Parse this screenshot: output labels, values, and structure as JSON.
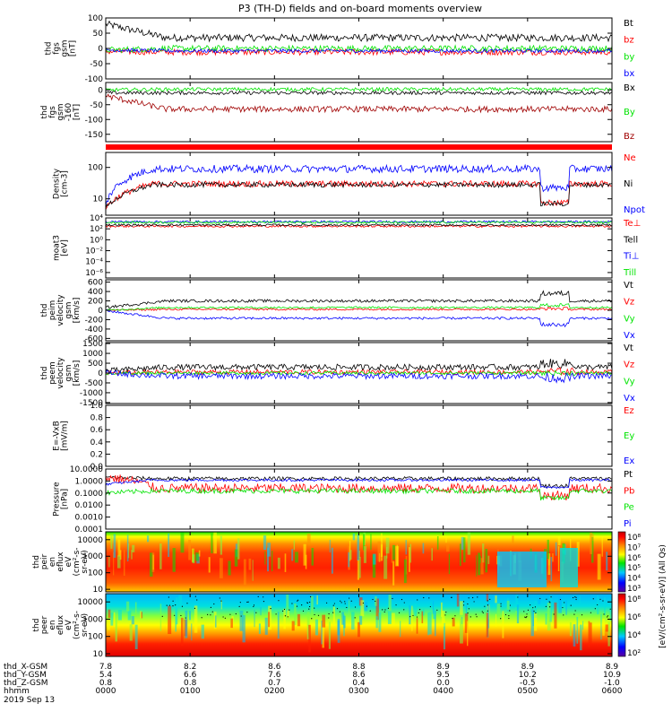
{
  "title": "P3 (TH-D) fields and on-board moments overview",
  "colors": {
    "black": "#000000",
    "red": "#ff0000",
    "green": "#00e400",
    "blue": "#0000ff",
    "darkred": "#a00000"
  },
  "chart_data": [
    {
      "type": "line",
      "panel": "fgs-gsm",
      "ylabel": [
        "thd",
        "fgs",
        "gsm",
        "[nT]"
      ],
      "ylim": [
        -100,
        100
      ],
      "yticks": [
        "100",
        "50",
        "0",
        "-50",
        "-100"
      ],
      "tickvals": [
        100,
        50,
        0,
        -50,
        -100
      ],
      "series": [
        {
          "name": "Bt",
          "color": "#000000",
          "base": 35,
          "noise": 12,
          "start": 80
        },
        {
          "name": "bz",
          "color": "#ff0000",
          "base": -12,
          "noise": 10,
          "start": -10
        },
        {
          "name": "by",
          "color": "#00e400",
          "base": 0,
          "noise": 10,
          "start": -5
        },
        {
          "name": "bx",
          "color": "#0000ff",
          "base": -8,
          "noise": 6,
          "start": -5
        }
      ]
    },
    {
      "type": "line",
      "panel": "fgs-gsm-160",
      "ylabel": [
        "thd",
        "fgs",
        "gsm",
        "-160",
        "[nT]"
      ],
      "ylim": [
        -175,
        25
      ],
      "yticks": [
        "0",
        "-50",
        "-100",
        "-150"
      ],
      "tickvals": [
        0,
        -50,
        -100,
        -150
      ],
      "series": [
        {
          "name": "Bx",
          "color": "#000000",
          "base": -10,
          "noise": 6,
          "start": -10
        },
        {
          "name": "By",
          "color": "#00e400",
          "base": 2,
          "noise": 6,
          "start": 0
        },
        {
          "name": "Bz",
          "color": "#a00000",
          "base": -65,
          "noise": 10,
          "start": -20
        }
      ]
    },
    {
      "type": "line",
      "panel": "density",
      "scale": "log",
      "ylabel": [
        "Density",
        "[cm-3]"
      ],
      "ylim": [
        3,
        300
      ],
      "yticks": [
        "100",
        "10"
      ],
      "tickvals": [
        100,
        10
      ],
      "series": [
        {
          "name": "Ne",
          "color": "#ff0000",
          "base": 30,
          "noise": 0.1,
          "start": 5
        },
        {
          "name": "Ni",
          "color": "#000000",
          "base": 28,
          "noise": 0.08,
          "start": 5
        },
        {
          "name": "Npot",
          "color": "#0000ff",
          "base": 90,
          "noise": 0.12,
          "start": 6
        }
      ]
    },
    {
      "type": "line",
      "panel": "temperature",
      "scale": "log",
      "ylabel": [
        "moat3",
        "[eV]"
      ],
      "ylim": [
        1e-07,
        10000
      ],
      "yticks": [
        "10⁴",
        "10²",
        "10⁰",
        "10⁻²",
        "10⁻⁴",
        "10⁻⁶"
      ],
      "tickvals": [
        10000,
        100,
        1,
        0.01,
        0.0001,
        1e-06
      ],
      "series": [
        {
          "name": "Te⊥",
          "color": "#ff0000",
          "base": 300,
          "noise": 0.2,
          "start": 300
        },
        {
          "name": "Tell",
          "color": "#000000",
          "base": 500,
          "noise": 0.2,
          "start": 500
        },
        {
          "name": "Ti⊥",
          "color": "#0000ff",
          "base": 2000,
          "noise": 0.2,
          "start": 2000
        },
        {
          "name": "Till",
          "color": "#00e400",
          "base": 1500,
          "noise": 0.2,
          "start": 1500
        }
      ]
    },
    {
      "type": "line",
      "panel": "peim-velocity",
      "ylabel": [
        "thd",
        "peim",
        "velocity",
        "gsm",
        "[km/s]"
      ],
      "ylim": [
        -650,
        650
      ],
      "yticks": [
        "600",
        "400",
        "200",
        "0",
        "-200",
        "-400",
        "-600"
      ],
      "tickvals": [
        600,
        400,
        200,
        0,
        -200,
        -400,
        -600
      ],
      "series": [
        {
          "name": "Vt",
          "color": "#000000",
          "base": 200,
          "noise": 30,
          "start": 60
        },
        {
          "name": "Vz",
          "color": "#ff0000",
          "base": 20,
          "noise": 20,
          "start": 0
        },
        {
          "name": "Vy",
          "color": "#00e400",
          "base": 60,
          "noise": 20,
          "start": 0
        },
        {
          "name": "Vx",
          "color": "#0000ff",
          "base": -170,
          "noise": 25,
          "start": -10
        }
      ]
    },
    {
      "type": "line",
      "panel": "peem-velocity",
      "ylabel": [
        "thd",
        "peem",
        "velocity",
        "gsm",
        "[km/s]"
      ],
      "ylim": [
        -1550,
        1550
      ],
      "yticks": [
        "1500",
        "1000",
        "500",
        "0",
        "-500",
        "-1000",
        "-1500"
      ],
      "tickvals": [
        1500,
        1000,
        500,
        0,
        -500,
        -1000,
        -1500
      ],
      "series": [
        {
          "name": "Vt",
          "color": "#000000",
          "base": 300,
          "noise": 150,
          "start": 100
        },
        {
          "name": "Vz",
          "color": "#ff0000",
          "base": 50,
          "noise": 120,
          "start": 0
        },
        {
          "name": "Vy",
          "color": "#00e400",
          "base": 0,
          "noise": 80,
          "start": 0
        },
        {
          "name": "Vx",
          "color": "#0000ff",
          "base": -150,
          "noise": 150,
          "start": 0
        }
      ]
    },
    {
      "type": "line",
      "panel": "efield",
      "ylabel": [
        "E=-VxB",
        "[mV/m]"
      ],
      "ylim": [
        0,
        1
      ],
      "yticks": [
        "1.0",
        "0.8",
        "0.6",
        "0.4",
        "0.2",
        "0.0"
      ],
      "tickvals": [
        1.0,
        0.8,
        0.6,
        0.4,
        0.2,
        0.0
      ],
      "series": [
        {
          "name": "Ez",
          "color": "#ff0000"
        },
        {
          "name": "Ey",
          "color": "#00e400"
        },
        {
          "name": "Ex",
          "color": "#0000ff"
        }
      ]
    },
    {
      "type": "line",
      "panel": "pressure",
      "scale": "log",
      "ylabel": [
        "Pressure",
        "[nPa]"
      ],
      "ylim": [
        0.0001,
        10
      ],
      "yticks": [
        "10.0000",
        "1.0000",
        "0.1000",
        "0.0100",
        "0.0010",
        "0.0001"
      ],
      "tickvals": [
        10,
        1,
        0.1,
        0.01,
        0.001,
        0.0001
      ],
      "series": [
        {
          "name": "Pt",
          "color": "#000000",
          "base": 1.6,
          "noise": 0.15,
          "start": 2.0
        },
        {
          "name": "Pb",
          "color": "#ff0000",
          "base": 0.25,
          "noise": 0.4,
          "start": 2.0
        },
        {
          "name": "Pe",
          "color": "#00e400",
          "base": 0.15,
          "noise": 0.2,
          "start": 0.1
        },
        {
          "name": "Pi",
          "color": "#0000ff",
          "base": 1.2,
          "noise": 0.1,
          "start": 0.5
        }
      ]
    },
    {
      "type": "heatmap",
      "panel": "peir-en-eflux",
      "ylabel": [
        "thd",
        "peir",
        "en",
        "eflux",
        "eV",
        "(cm²-s-",
        "sr-eV)"
      ],
      "ylim": [
        7,
        30000
      ],
      "yticks": [
        "10000",
        "1000",
        "100",
        "10"
      ],
      "tickvals": [
        10000,
        1000,
        100,
        10
      ]
    },
    {
      "type": "heatmap",
      "panel": "peer-en-eflux",
      "ylabel": [
        "thd",
        "peer",
        "en",
        "eflux",
        "eV",
        "(cm²-s-",
        "sr-eV)"
      ],
      "ylim": [
        7,
        30000
      ],
      "yticks": [
        "10000",
        "1000",
        "100",
        "10"
      ],
      "tickvals": [
        10000,
        1000,
        100,
        10
      ]
    }
  ],
  "colorbar": {
    "label": "[eV/(cm²-s-sr-eV)] (All Qs)",
    "ticks": [
      "10⁸",
      "10⁷",
      "10⁶",
      "10⁵",
      "10⁴",
      "10³"
    ],
    "ticks_lower": [
      "10⁸",
      "10⁶",
      "10⁴",
      "10²"
    ]
  },
  "xaxis": {
    "rows": [
      {
        "label": "thd_X-GSM",
        "values": [
          "7.8",
          "8.2",
          "8.6",
          "8.8",
          "8.9",
          "8.9",
          "8.9"
        ]
      },
      {
        "label": "thd_Y-GSM",
        "values": [
          "5.4",
          "6.6",
          "7.6",
          "8.6",
          "9.5",
          "10.2",
          "10.9"
        ]
      },
      {
        "label": "thd_Z-GSM",
        "values": [
          "0.8",
          "0.8",
          "0.7",
          "0.4",
          "0.0",
          "-0.5",
          "-1.0"
        ]
      },
      {
        "label": "hhmm",
        "values": [
          "0000",
          "0100",
          "0200",
          "0300",
          "0400",
          "0500",
          "0600"
        ]
      }
    ],
    "date": "2019 Sep 13"
  }
}
